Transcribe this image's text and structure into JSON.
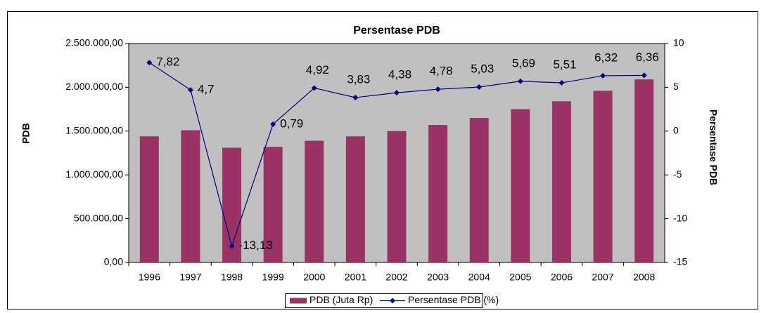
{
  "chart_data": {
    "type": "bar",
    "title": "Persentase PDB",
    "ylabel": "PDB",
    "y2label": "Persentase PDB",
    "categories": [
      "1996",
      "1997",
      "1998",
      "1999",
      "2000",
      "2001",
      "2002",
      "2003",
      "2004",
      "2005",
      "2006",
      "2007",
      "2008"
    ],
    "series": [
      {
        "name": "PDB (Juta Rp)",
        "type": "bar",
        "color": "#993366",
        "values": [
          1440000,
          1510000,
          1310000,
          1320000,
          1390000,
          1440000,
          1500000,
          1570000,
          1650000,
          1750000,
          1840000,
          1960000,
          2090000
        ]
      },
      {
        "name": "Persentase PDB (%)",
        "type": "line",
        "axis": "y2",
        "color": "#000080",
        "values": [
          7.82,
          4.7,
          -13.13,
          0.79,
          4.92,
          3.83,
          4.38,
          4.78,
          5.03,
          5.69,
          5.51,
          6.32,
          6.36
        ],
        "value_labels": [
          "7,82",
          "4,7",
          "-13,13",
          "0,79",
          "4,92",
          "3,83",
          "4,38",
          "4,78",
          "5,03",
          "5,69",
          "5,51",
          "6,32",
          "6,36"
        ]
      }
    ],
    "ylim": [
      0,
      2500000
    ],
    "yticks": [
      {
        "value": 0,
        "label": "0,00"
      },
      {
        "value": 500000,
        "label": "500.000,00"
      },
      {
        "value": 1000000,
        "label": "1.000.000,00"
      },
      {
        "value": 1500000,
        "label": "1.500.000,00"
      },
      {
        "value": 2000000,
        "label": "2.000.000,00"
      },
      {
        "value": 2500000,
        "label": "2.500.000,00"
      }
    ],
    "y2lim": [
      -15,
      10
    ],
    "y2ticks": [
      -15,
      -10,
      -5,
      0,
      5,
      10
    ],
    "grid": false,
    "legend": "bottom"
  }
}
